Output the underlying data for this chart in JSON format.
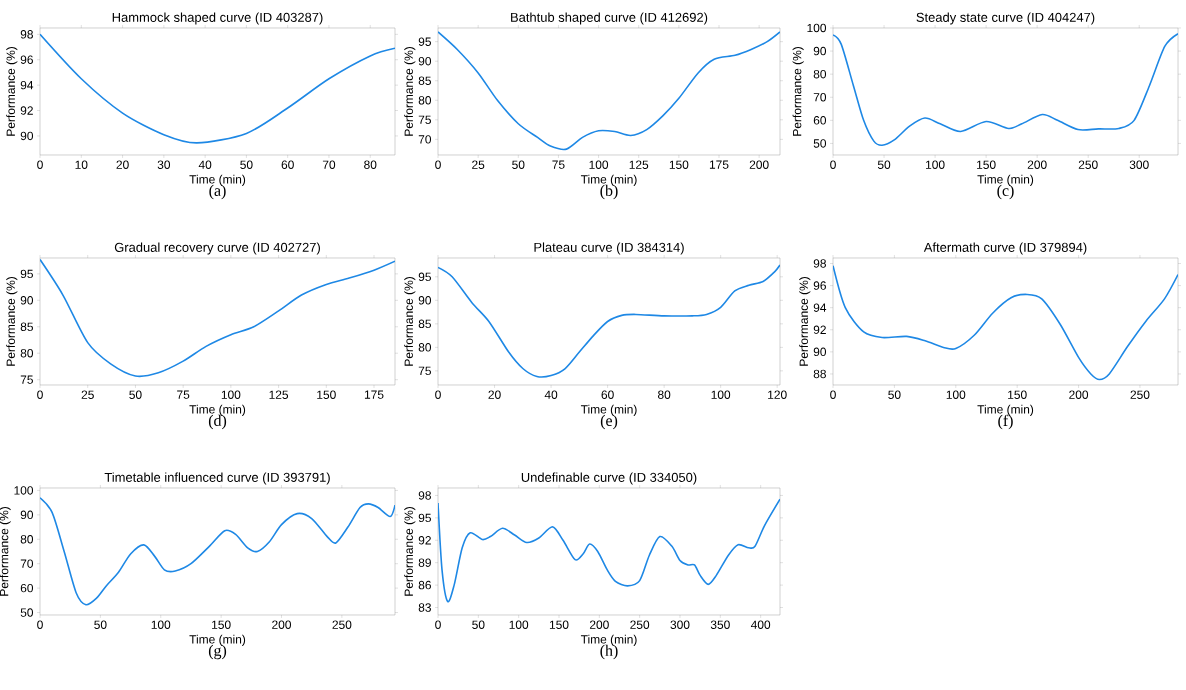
{
  "chart_data": [
    {
      "type": "line",
      "title": "Hammock shaped curve (ID 403287)",
      "xlabel": "Time (min)",
      "ylabel": "Performance (%)",
      "annotations": [
        "(a)"
      ],
      "xlim": [
        0,
        86
      ],
      "ylim": [
        88.5,
        98.5
      ],
      "xticks": [
        0,
        10,
        20,
        30,
        40,
        50,
        60,
        70,
        80
      ],
      "yticks": [
        90,
        92,
        94,
        96,
        98
      ],
      "x": [
        0,
        10,
        20,
        30,
        38,
        50,
        60,
        70,
        80,
        86
      ],
      "series": [
        {
          "color": "#1e88e5",
          "values": [
            98,
            94.5,
            91.8,
            90.1,
            89.45,
            90.2,
            92.2,
            94.5,
            96.3,
            96.9
          ]
        }
      ]
    },
    {
      "type": "line",
      "title": "Bathtub shaped curve (ID 412692)",
      "xlabel": "Time (min)",
      "ylabel": "Performance (%)",
      "annotations": [
        "(b)"
      ],
      "xlim": [
        0,
        213
      ],
      "ylim": [
        66,
        98.5
      ],
      "xticks": [
        0,
        25,
        50,
        75,
        100,
        125,
        150,
        175,
        200
      ],
      "yticks": [
        70,
        75,
        80,
        85,
        90,
        95
      ],
      "x": [
        0,
        12,
        25,
        37,
        50,
        62,
        70,
        80,
        90,
        100,
        110,
        120,
        130,
        140,
        150,
        162,
        172,
        185,
        195,
        205,
        213
      ],
      "series": [
        {
          "color": "#1e88e5",
          "values": [
            97.5,
            93,
            87,
            80,
            74,
            70.5,
            68.3,
            67.5,
            70.5,
            72.2,
            72,
            71,
            72.5,
            76,
            80.5,
            87,
            90.5,
            91.5,
            93,
            95,
            97.5
          ]
        }
      ]
    },
    {
      "type": "line",
      "title": "Steady state curve (ID 404247)",
      "xlabel": "Time (min)",
      "ylabel": "Performance (%)",
      "annotations": [
        "(c)"
      ],
      "xlim": [
        0,
        338
      ],
      "ylim": [
        45,
        100
      ],
      "xticks": [
        0,
        50,
        100,
        150,
        200,
        250,
        300
      ],
      "yticks": [
        50,
        60,
        70,
        80,
        90,
        100
      ],
      "x": [
        0,
        8,
        20,
        30,
        40,
        48,
        60,
        75,
        90,
        105,
        125,
        150,
        172,
        185,
        205,
        220,
        240,
        260,
        280,
        295,
        310,
        325,
        338
      ],
      "series": [
        {
          "color": "#1e88e5",
          "values": [
            97,
            93,
            75,
            60,
            51,
            49.2,
            51.5,
            57.5,
            61,
            58.5,
            55.2,
            59.5,
            56.5,
            58.5,
            62.5,
            60,
            56,
            56.3,
            56.5,
            60,
            75,
            92,
            97.5
          ]
        }
      ]
    },
    {
      "type": "line",
      "title": "Gradual recovery curve (ID 402727)",
      "xlabel": "Time (min)",
      "ylabel": "Performance (%)",
      "annotations": [
        "(d)"
      ],
      "xlim": [
        0,
        186
      ],
      "ylim": [
        74,
        98
      ],
      "xticks": [
        0,
        25,
        50,
        75,
        100,
        125,
        150,
        175
      ],
      "yticks": [
        75,
        80,
        85,
        90,
        95
      ],
      "x": [
        0,
        12,
        25,
        37,
        50,
        62,
        75,
        87,
        100,
        112,
        125,
        137,
        150,
        162,
        175,
        186
      ],
      "series": [
        {
          "color": "#1e88e5",
          "values": [
            97.7,
            91,
            82,
            78,
            75.7,
            76.3,
            78.5,
            81.3,
            83.5,
            85,
            88,
            91,
            93,
            94.2,
            95.7,
            97.4
          ]
        }
      ]
    },
    {
      "type": "line",
      "title": "Plateau curve (ID 384314)",
      "xlabel": "Time (min)",
      "ylabel": "Performance (%)",
      "annotations": [
        "(e)"
      ],
      "xlim": [
        0,
        121
      ],
      "ylim": [
        72,
        99
      ],
      "xticks": [
        0,
        20,
        40,
        60,
        80,
        100,
        120
      ],
      "yticks": [
        75,
        80,
        85,
        90,
        95
      ],
      "x": [
        0,
        5,
        12,
        18,
        25,
        30,
        35,
        40,
        45,
        50,
        55,
        60,
        65,
        70,
        80,
        90,
        95,
        100,
        105,
        110,
        115,
        119,
        121
      ],
      "series": [
        {
          "color": "#1e88e5",
          "values": [
            97,
            95,
            89.5,
            85.5,
            79,
            75.5,
            73.8,
            74,
            75.5,
            79,
            82.5,
            85.5,
            86.8,
            87,
            86.7,
            86.7,
            87,
            88.5,
            92,
            93.2,
            94,
            96,
            97.5
          ]
        }
      ]
    },
    {
      "type": "line",
      "title": "Aftermath curve (ID 379894)",
      "xlabel": "Time (min)",
      "ylabel": "Performance (%)",
      "annotations": [
        "(f)"
      ],
      "xlim": [
        0,
        281
      ],
      "ylim": [
        87,
        98.5
      ],
      "xticks": [
        0,
        50,
        100,
        150,
        200,
        250
      ],
      "yticks": [
        88,
        90,
        92,
        94,
        96,
        98
      ],
      "x": [
        0,
        10,
        25,
        40,
        60,
        75,
        90,
        100,
        115,
        130,
        145,
        158,
        170,
        185,
        200,
        210,
        217,
        225,
        240,
        255,
        270,
        281
      ],
      "series": [
        {
          "color": "#1e88e5",
          "values": [
            97.8,
            94,
            91.8,
            91.3,
            91.4,
            91,
            90.4,
            90.3,
            91.5,
            93.5,
            94.9,
            95.2,
            94.8,
            92.5,
            89.5,
            88,
            87.5,
            88,
            90.5,
            92.8,
            94.8,
            97
          ]
        }
      ]
    },
    {
      "type": "line",
      "title": "Timetable influenced curve (ID 393791)",
      "xlabel": "Time (min)",
      "ylabel": "Performance (%)",
      "annotations": [
        "(g)"
      ],
      "xlim": [
        0,
        294
      ],
      "ylim": [
        49,
        101
      ],
      "xticks": [
        0,
        50,
        100,
        150,
        200,
        250
      ],
      "yticks": [
        50,
        60,
        70,
        80,
        90,
        100
      ],
      "x": [
        0,
        10,
        20,
        30,
        38,
        47,
        55,
        65,
        75,
        86,
        95,
        103,
        112,
        125,
        140,
        153,
        162,
        172,
        180,
        190,
        200,
        213,
        225,
        238,
        245,
        255,
        265,
        272,
        280,
        290,
        294
      ],
      "series": [
        {
          "color": "#1e88e5",
          "values": [
            97,
            91,
            75,
            58,
            53.2,
            56,
            61,
            66.5,
            74,
            77.7,
            73,
            67.5,
            67,
            70,
            77,
            83.5,
            82,
            76.5,
            75,
            79,
            86,
            90.5,
            88.5,
            81,
            78.5,
            85,
            93,
            94.5,
            93,
            89.3,
            94
          ]
        }
      ]
    },
    {
      "type": "line",
      "title": "Undefinable curve (ID 334050)",
      "xlabel": "Time (min)",
      "ylabel": "Performance (%)",
      "annotations": [
        "(h)"
      ],
      "xlim": [
        0,
        424
      ],
      "ylim": [
        82,
        99
      ],
      "xticks": [
        0,
        50,
        100,
        150,
        200,
        250,
        300,
        350,
        400
      ],
      "yticks": [
        83,
        86,
        89,
        92,
        95,
        98
      ],
      "x": [
        0,
        5,
        12,
        20,
        30,
        40,
        55,
        65,
        80,
        95,
        110,
        125,
        142,
        155,
        170,
        180,
        188,
        198,
        210,
        220,
        235,
        250,
        262,
        275,
        290,
        300,
        310,
        318,
        325,
        335,
        345,
        360,
        372,
        385,
        393,
        405,
        424
      ],
      "series": [
        {
          "color": "#1e88e5",
          "values": [
            97,
            88,
            83.8,
            86,
            91,
            93,
            92.1,
            92.5,
            93.6,
            92.7,
            91.7,
            92.3,
            93.8,
            92,
            89.4,
            90.2,
            91.5,
            90.5,
            88,
            86.5,
            85.9,
            86.6,
            90,
            92.5,
            91.2,
            89.3,
            88.7,
            88.7,
            87.3,
            86.1,
            87.3,
            90,
            91.4,
            91,
            91.2,
            94,
            97.5
          ]
        }
      ]
    }
  ]
}
